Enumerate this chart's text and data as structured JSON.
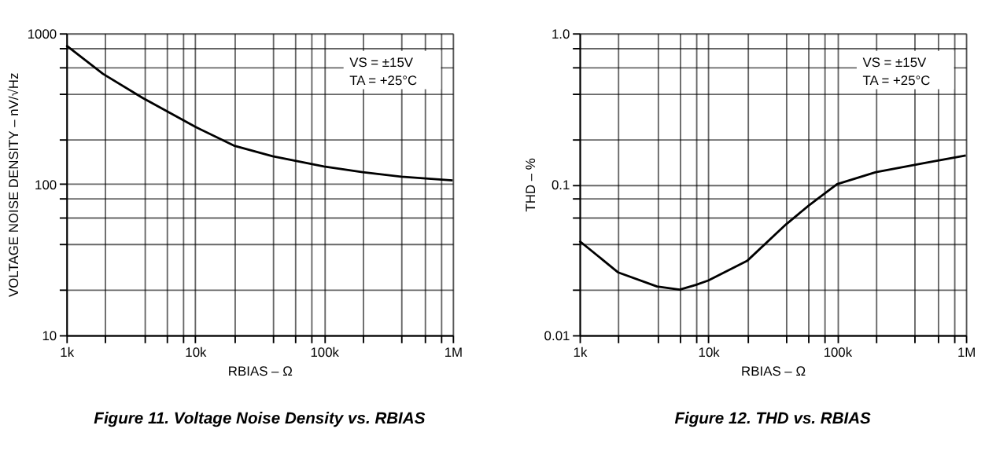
{
  "chart_data": [
    {
      "type": "line",
      "title": "Figure 11.  Voltage Noise Density vs. RBIAS",
      "xlabel": "RBIAS – Ω",
      "ylabel": "VOLTAGE NOISE DENSITY – nV/√Hz",
      "log": "xy",
      "grid": true,
      "annotations": [
        "VS = ±15V",
        "TA = +25°C"
      ],
      "xlim": [
        1000,
        1000000
      ],
      "ylim": [
        10,
        1000
      ],
      "xticks": [
        {
          "value": 1000,
          "label": "1k"
        },
        {
          "value": 2000,
          "label": null
        },
        {
          "value": 4000,
          "label": null
        },
        {
          "value": 6000,
          "label": null
        },
        {
          "value": 8000,
          "label": null
        },
        {
          "value": 10000,
          "label": "10k"
        },
        {
          "value": 20000,
          "label": null
        },
        {
          "value": 40000,
          "label": null
        },
        {
          "value": 60000,
          "label": null
        },
        {
          "value": 80000,
          "label": null
        },
        {
          "value": 100000,
          "label": "100k"
        },
        {
          "value": 200000,
          "label": null
        },
        {
          "value": 400000,
          "label": null
        },
        {
          "value": 600000,
          "label": null
        },
        {
          "value": 800000,
          "label": null
        },
        {
          "value": 1000000,
          "label": "1M"
        }
      ],
      "yticks": [
        10,
        {
          "value": 20,
          "label": null
        },
        {
          "value": 40,
          "label": null
        },
        {
          "value": 60,
          "label": null
        },
        {
          "value": 80,
          "label": null
        },
        100,
        {
          "value": 200,
          "label": null
        },
        {
          "value": 400,
          "label": null
        },
        {
          "value": 600,
          "label": null
        },
        {
          "value": 800,
          "label": null
        },
        1000
      ],
      "series": [
        {
          "color": "#000000",
          "x": [
            1000,
            1930,
            3900,
            10000,
            20000,
            40000,
            100000,
            200000,
            400000,
            1000000
          ],
          "values": [
            830,
            537,
            373,
            240,
            180,
            153,
            131,
            120,
            112,
            106
          ]
        }
      ]
    },
    {
      "type": "line",
      "title": "Figure 12.  THD vs. RBIAS",
      "xlabel": "RBIAS – Ω",
      "ylabel": "THD – %",
      "log": "xy",
      "grid": true,
      "annotations": [
        "VS = ±15V",
        "TA = +25°C"
      ],
      "xlim": [
        1000,
        1000000
      ],
      "ylim": [
        0.01,
        1.0
      ],
      "xticks": [
        {
          "value": 1000,
          "label": "1k"
        },
        {
          "value": 2000,
          "label": null
        },
        {
          "value": 4000,
          "label": null
        },
        {
          "value": 6000,
          "label": null
        },
        {
          "value": 8000,
          "label": null
        },
        {
          "value": 10000,
          "label": "10k"
        },
        {
          "value": 20000,
          "label": null
        },
        {
          "value": 40000,
          "label": null
        },
        {
          "value": 60000,
          "label": null
        },
        {
          "value": 80000,
          "label": null
        },
        {
          "value": 100000,
          "label": "100k"
        },
        {
          "value": 200000,
          "label": null
        },
        {
          "value": 400000,
          "label": null
        },
        {
          "value": 600000,
          "label": null
        },
        {
          "value": 800000,
          "label": null
        },
        {
          "value": 1000000,
          "label": "1M"
        }
      ],
      "yticks": [
        0.01,
        {
          "value": 0.02,
          "label": null
        },
        {
          "value": 0.04,
          "label": null
        },
        {
          "value": 0.06,
          "label": null
        },
        {
          "value": 0.08,
          "label": null
        },
        0.1,
        {
          "value": 0.2,
          "label": null
        },
        {
          "value": 0.4,
          "label": null
        },
        {
          "value": 0.6,
          "label": null
        },
        {
          "value": 0.8,
          "label": null
        },
        {
          "value": 1.0,
          "label": "1.0"
        }
      ],
      "series": [
        {
          "color": "#000000",
          "x": [
            1000,
            2000,
            4000,
            6000,
            8000,
            10000,
            20000,
            40000,
            60000,
            100000,
            200000,
            500000,
            1000000
          ],
          "values": [
            0.042,
            0.026,
            0.021,
            0.02,
            0.0215,
            0.023,
            0.031,
            0.054,
            0.072,
            0.1,
            0.12,
            0.139,
            0.155
          ]
        }
      ]
    }
  ]
}
